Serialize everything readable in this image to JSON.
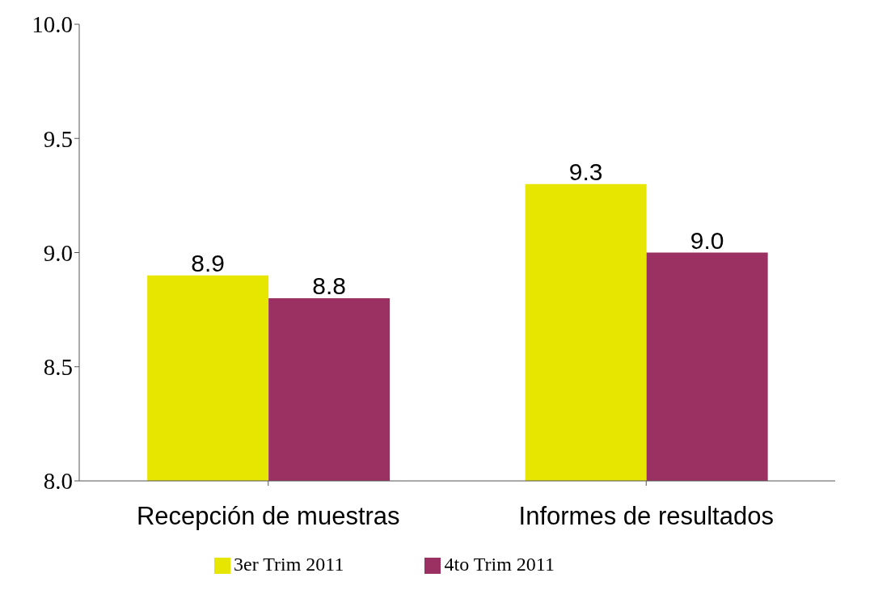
{
  "chart_data": {
    "type": "bar",
    "categories": [
      "Recepción de muestras",
      "Informes de resultados"
    ],
    "series": [
      {
        "name": "3er Trim 2011",
        "color": "#e6e600",
        "values": [
          8.9,
          9.3
        ],
        "value_labels": [
          "8.9",
          "9.3"
        ]
      },
      {
        "name": "4to Trim 2011",
        "color": "#9b3163",
        "values": [
          8.8,
          9.0
        ],
        "value_labels": [
          "8.8",
          "9.0"
        ]
      }
    ],
    "ylim": [
      8,
      10
    ],
    "yticks": [
      {
        "value": 8,
        "label": "8.0"
      },
      {
        "value": 8.5,
        "label": "8.5"
      },
      {
        "value": 9,
        "label": "9.0"
      },
      {
        "value": 9.5,
        "label": "9.5"
      },
      {
        "value": 10,
        "label": "10.0"
      }
    ],
    "legend": "bottom",
    "grid": false
  }
}
